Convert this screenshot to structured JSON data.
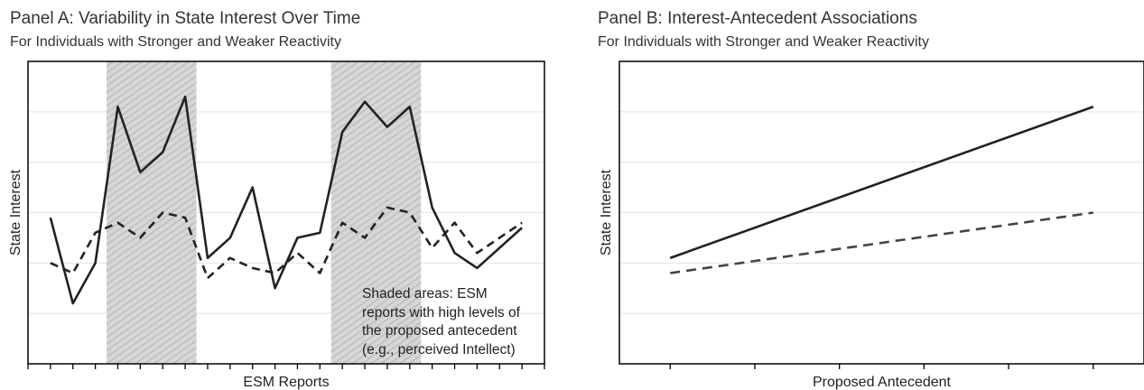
{
  "panel_a": {
    "title": "Panel A: Variability in State Interest Over Time",
    "subtitle": "For Individuals with Stronger and Weaker Reactivity",
    "note_lines": [
      "Shaded areas: ESM",
      "reports with high levels of",
      "the proposed antecedent",
      "(e.g., perceived Intellect)"
    ]
  },
  "panel_b": {
    "title": "Panel B: Interest-Antecedent Associations",
    "subtitle": "For Individuals with Stronger and Weaker Reactivity"
  },
  "colors": {
    "line": "#222222",
    "dashed_line_b": "#444444",
    "grid": "#e3e3e3",
    "shade": "#cccccc",
    "frame": "#000000"
  },
  "chart_data": [
    {
      "type": "line",
      "title": "Panel A: Variability in State Interest Over Time",
      "subtitle": "For Individuals with Stronger and Weaker Reactivity",
      "xlabel": "ESM Reports",
      "ylabel": "State Interest",
      "x": [
        1,
        2,
        3,
        4,
        5,
        6,
        7,
        8,
        9,
        10,
        11,
        12,
        13,
        14,
        15,
        16,
        17,
        18,
        19,
        20,
        21,
        22
      ],
      "xlim": [
        0,
        23
      ],
      "ylim": [
        0,
        6
      ],
      "grid": true,
      "shaded_ranges": [
        [
          3.5,
          7.5
        ],
        [
          13.5,
          17.5
        ]
      ],
      "series": [
        {
          "style": "solid",
          "values": [
            2.9,
            1.2,
            2.0,
            5.1,
            3.8,
            4.2,
            5.3,
            2.1,
            2.5,
            3.5,
            1.5,
            2.5,
            2.6,
            4.6,
            5.2,
            4.7,
            5.1,
            3.1,
            2.2,
            1.9,
            2.7
          ],
          "x": [
            1,
            2,
            3,
            4,
            5,
            6,
            7,
            8,
            9,
            10,
            11,
            12,
            13,
            14,
            15,
            16,
            17,
            18,
            19,
            20,
            22
          ]
        },
        {
          "style": "dashed",
          "values": [
            2.0,
            1.8,
            2.6,
            2.8,
            2.5,
            3.0,
            2.9,
            1.7,
            2.1,
            1.9,
            1.8,
            2.2,
            1.8,
            2.8,
            2.5,
            3.1,
            3.0,
            2.3,
            2.8,
            2.2,
            2.8
          ],
          "x": [
            1,
            2,
            3,
            4,
            5,
            6,
            7,
            8,
            9,
            10,
            11,
            12,
            13,
            14,
            15,
            16,
            17,
            18,
            19,
            20,
            22
          ]
        }
      ],
      "annotation": "Shaded areas: ESM reports with high levels of the proposed antecedent (e.g., perceived Intellect)"
    },
    {
      "type": "line",
      "title": "Panel B: Interest-Antecedent Associations",
      "subtitle": "For Individuals with Stronger and Weaker Reactivity",
      "xlabel": "Proposed Antecedent",
      "ylabel": "State Interest",
      "xlim": [
        -0.6,
        5.6
      ],
      "ylim": [
        0,
        6
      ],
      "grid": true,
      "x_ticks": [
        0,
        1,
        2,
        3,
        4,
        5
      ],
      "series": [
        {
          "style": "solid",
          "x": [
            0,
            5
          ],
          "values": [
            2.1,
            5.1
          ]
        },
        {
          "style": "dashed",
          "x": [
            0,
            5
          ],
          "values": [
            1.8,
            3.0
          ]
        }
      ]
    }
  ]
}
